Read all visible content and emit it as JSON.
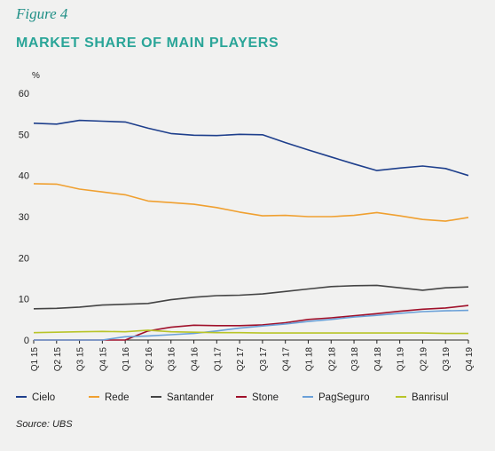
{
  "figure_label": "Figure 4",
  "source": "Source: UBS",
  "chart_data": {
    "type": "line",
    "title": "MARKET SHARE OF MAIN PLAYERS",
    "ylabel": "%",
    "xlabel": "",
    "ylim": [
      0,
      60
    ],
    "yticks": [
      0,
      10,
      20,
      30,
      40,
      50,
      60
    ],
    "grid": false,
    "legend_position": "bottom",
    "x": [
      "Q1 15",
      "Q2 15",
      "Q3 15",
      "Q4 15",
      "Q1 16",
      "Q2 16",
      "Q3 16",
      "Q4 16",
      "Q1 17",
      "Q2 17",
      "Q3 17",
      "Q4 17",
      "Q1 18",
      "Q2 18",
      "Q3 18",
      "Q4 18",
      "Q1 19",
      "Q2 19",
      "Q3 19",
      "Q4 19"
    ],
    "series": [
      {
        "name": "Cielo",
        "color": "#1e3f8c",
        "values": [
          52.7,
          52.5,
          53.4,
          53.2,
          53.0,
          51.5,
          50.2,
          49.8,
          49.7,
          50.0,
          49.9,
          48.0,
          46.2,
          44.5,
          42.8,
          41.2,
          41.8,
          42.3,
          41.7,
          40.0
        ]
      },
      {
        "name": "Rede",
        "color": "#f0a030",
        "values": [
          38.0,
          37.9,
          36.7,
          36.0,
          35.3,
          33.8,
          33.4,
          33.0,
          32.2,
          31.1,
          30.2,
          30.3,
          30.0,
          30.0,
          30.3,
          31.0,
          30.2,
          29.3,
          28.9,
          29.8
        ]
      },
      {
        "name": "Santander",
        "color": "#444444",
        "values": [
          7.6,
          7.7,
          8.0,
          8.5,
          8.7,
          8.9,
          9.8,
          10.4,
          10.8,
          10.9,
          11.2,
          11.8,
          12.4,
          13.0,
          13.2,
          13.3,
          12.7,
          12.1,
          12.7,
          12.9
        ]
      },
      {
        "name": "Stone",
        "color": "#a0102a",
        "values": [
          0,
          0,
          0,
          0,
          0,
          2.2,
          3.1,
          3.6,
          3.5,
          3.5,
          3.7,
          4.2,
          5.0,
          5.4,
          5.9,
          6.4,
          7.0,
          7.5,
          7.8,
          8.4
        ]
      },
      {
        "name": "PagSeguro",
        "color": "#6aa0d8",
        "values": [
          0,
          0,
          0,
          0,
          0.8,
          1.0,
          1.3,
          1.6,
          2.2,
          2.9,
          3.4,
          3.9,
          4.5,
          5.0,
          5.6,
          6.0,
          6.5,
          6.9,
          7.1,
          7.2
        ]
      },
      {
        "name": "Banrisul",
        "color": "#b8c428",
        "values": [
          1.8,
          1.9,
          2.0,
          2.1,
          2.0,
          2.4,
          2.0,
          1.9,
          1.8,
          1.8,
          1.7,
          1.7,
          1.7,
          1.7,
          1.7,
          1.7,
          1.7,
          1.7,
          1.6,
          1.6
        ]
      }
    ]
  }
}
